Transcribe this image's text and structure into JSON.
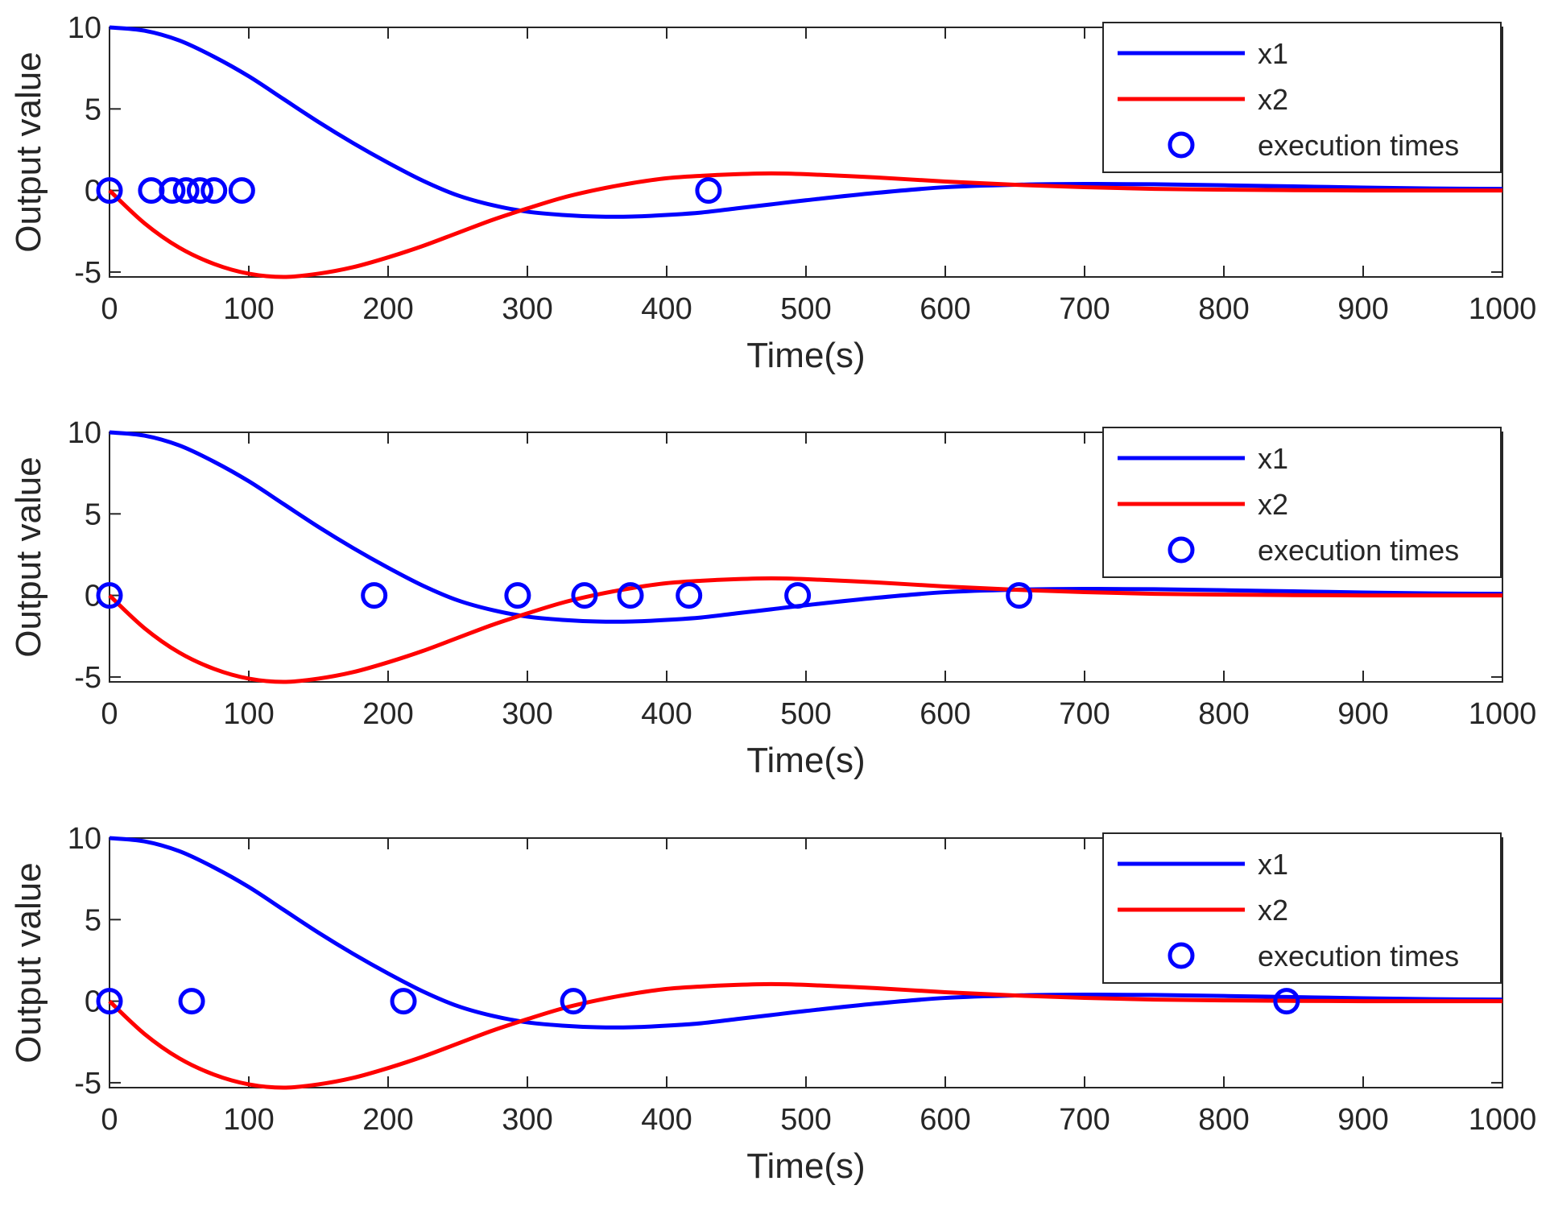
{
  "colors": {
    "x1": "#0000ff",
    "x2": "#ff0000",
    "markers": "#0000ff",
    "axes": "#262626"
  },
  "chart_data": [
    {
      "type": "line",
      "xlabel": "Time(s)",
      "ylabel": "Output value",
      "xlim": [
        0,
        1000
      ],
      "ylim": [
        -5.3,
        10
      ],
      "xticks": [
        0,
        100,
        200,
        300,
        400,
        500,
        600,
        700,
        800,
        900,
        1000
      ],
      "yticks": [
        -5,
        0,
        5,
        10
      ],
      "legend_position": "top-right",
      "series": [
        {
          "name": "x1",
          "color": "#0000ff",
          "x": [
            0,
            25,
            50,
            75,
            100,
            125,
            150,
            175,
            200,
            225,
            250,
            275,
            300,
            325,
            350,
            375,
            400,
            425,
            450,
            475,
            500,
            550,
            600,
            650,
            700,
            750,
            800,
            850,
            900,
            950,
            1000
          ],
          "values": [
            10,
            9.8,
            9.2,
            8.2,
            7.0,
            5.6,
            4.2,
            2.9,
            1.7,
            0.6,
            -0.3,
            -0.9,
            -1.3,
            -1.5,
            -1.6,
            -1.6,
            -1.5,
            -1.35,
            -1.1,
            -0.85,
            -0.6,
            -0.15,
            0.2,
            0.35,
            0.4,
            0.38,
            0.32,
            0.25,
            0.18,
            0.12,
            0.1
          ]
        },
        {
          "name": "x2",
          "color": "#ff0000",
          "x": [
            0,
            25,
            50,
            75,
            100,
            125,
            150,
            175,
            200,
            225,
            250,
            275,
            300,
            325,
            350,
            375,
            400,
            425,
            450,
            475,
            500,
            550,
            600,
            650,
            700,
            750,
            800,
            850,
            900,
            950,
            1000
          ],
          "values": [
            0,
            -2.0,
            -3.5,
            -4.5,
            -5.1,
            -5.3,
            -5.1,
            -4.7,
            -4.1,
            -3.4,
            -2.6,
            -1.8,
            -1.1,
            -0.45,
            0.05,
            0.45,
            0.75,
            0.9,
            1.0,
            1.05,
            1.0,
            0.8,
            0.55,
            0.35,
            0.2,
            0.1,
            0.05,
            0.02,
            0,
            0,
            0
          ]
        },
        {
          "name": "execution times",
          "type": "scatter",
          "color": "#0000ff",
          "x": [
            0,
            30,
            45,
            55,
            65,
            75,
            95,
            430
          ],
          "values": [
            0,
            0,
            0,
            0,
            0,
            0,
            0,
            0
          ]
        }
      ]
    },
    {
      "type": "line",
      "xlabel": "Time(s)",
      "ylabel": "Output value",
      "xlim": [
        0,
        1000
      ],
      "ylim": [
        -5.3,
        10
      ],
      "xticks": [
        0,
        100,
        200,
        300,
        400,
        500,
        600,
        700,
        800,
        900,
        1000
      ],
      "yticks": [
        -5,
        0,
        5,
        10
      ],
      "legend_position": "top-right",
      "series": [
        {
          "name": "x1",
          "color": "#0000ff",
          "x": [
            0,
            25,
            50,
            75,
            100,
            125,
            150,
            175,
            200,
            225,
            250,
            275,
            300,
            325,
            350,
            375,
            400,
            425,
            450,
            475,
            500,
            550,
            600,
            650,
            700,
            750,
            800,
            850,
            900,
            950,
            1000
          ],
          "values": [
            10,
            9.8,
            9.2,
            8.2,
            7.0,
            5.6,
            4.2,
            2.9,
            1.7,
            0.6,
            -0.3,
            -0.9,
            -1.3,
            -1.5,
            -1.6,
            -1.6,
            -1.5,
            -1.35,
            -1.1,
            -0.85,
            -0.6,
            -0.15,
            0.2,
            0.35,
            0.4,
            0.38,
            0.32,
            0.25,
            0.18,
            0.12,
            0.1
          ]
        },
        {
          "name": "x2",
          "color": "#ff0000",
          "x": [
            0,
            25,
            50,
            75,
            100,
            125,
            150,
            175,
            200,
            225,
            250,
            275,
            300,
            325,
            350,
            375,
            400,
            425,
            450,
            475,
            500,
            550,
            600,
            650,
            700,
            750,
            800,
            850,
            900,
            950,
            1000
          ],
          "values": [
            0,
            -2.0,
            -3.5,
            -4.5,
            -5.1,
            -5.3,
            -5.1,
            -4.7,
            -4.1,
            -3.4,
            -2.6,
            -1.8,
            -1.1,
            -0.45,
            0.05,
            0.45,
            0.75,
            0.9,
            1.0,
            1.05,
            1.0,
            0.8,
            0.55,
            0.35,
            0.2,
            0.1,
            0.05,
            0.02,
            0,
            0,
            0
          ]
        },
        {
          "name": "execution times",
          "type": "scatter",
          "color": "#0000ff",
          "x": [
            0,
            190,
            293,
            341,
            374,
            416,
            494,
            653
          ],
          "values": [
            0,
            0,
            0,
            0,
            0,
            0,
            0,
            0
          ]
        }
      ]
    },
    {
      "type": "line",
      "xlabel": "Time(s)",
      "ylabel": "Output value",
      "xlim": [
        0,
        1000
      ],
      "ylim": [
        -5.3,
        10
      ],
      "xticks": [
        0,
        100,
        200,
        300,
        400,
        500,
        600,
        700,
        800,
        900,
        1000
      ],
      "yticks": [
        -5,
        0,
        5,
        10
      ],
      "legend_position": "top-right",
      "series": [
        {
          "name": "x1",
          "color": "#0000ff",
          "x": [
            0,
            25,
            50,
            75,
            100,
            125,
            150,
            175,
            200,
            225,
            250,
            275,
            300,
            325,
            350,
            375,
            400,
            425,
            450,
            475,
            500,
            550,
            600,
            650,
            700,
            750,
            800,
            850,
            900,
            950,
            1000
          ],
          "values": [
            10,
            9.8,
            9.2,
            8.2,
            7.0,
            5.6,
            4.2,
            2.9,
            1.7,
            0.6,
            -0.3,
            -0.9,
            -1.3,
            -1.5,
            -1.6,
            -1.6,
            -1.5,
            -1.35,
            -1.1,
            -0.85,
            -0.6,
            -0.15,
            0.2,
            0.35,
            0.4,
            0.38,
            0.32,
            0.25,
            0.18,
            0.12,
            0.1
          ]
        },
        {
          "name": "x2",
          "color": "#ff0000",
          "x": [
            0,
            25,
            50,
            75,
            100,
            125,
            150,
            175,
            200,
            225,
            250,
            275,
            300,
            325,
            350,
            375,
            400,
            425,
            450,
            475,
            500,
            550,
            600,
            650,
            700,
            750,
            800,
            850,
            900,
            950,
            1000
          ],
          "values": [
            0,
            -2.0,
            -3.5,
            -4.5,
            -5.1,
            -5.3,
            -5.1,
            -4.7,
            -4.1,
            -3.4,
            -2.6,
            -1.8,
            -1.1,
            -0.45,
            0.05,
            0.45,
            0.75,
            0.9,
            1.0,
            1.05,
            1.0,
            0.8,
            0.55,
            0.35,
            0.2,
            0.1,
            0.05,
            0.02,
            0,
            0,
            0
          ]
        },
        {
          "name": "execution times",
          "type": "scatter",
          "color": "#0000ff",
          "x": [
            0,
            59,
            211,
            333,
            845
          ],
          "values": [
            0,
            0,
            0,
            0,
            0
          ]
        }
      ]
    }
  ]
}
